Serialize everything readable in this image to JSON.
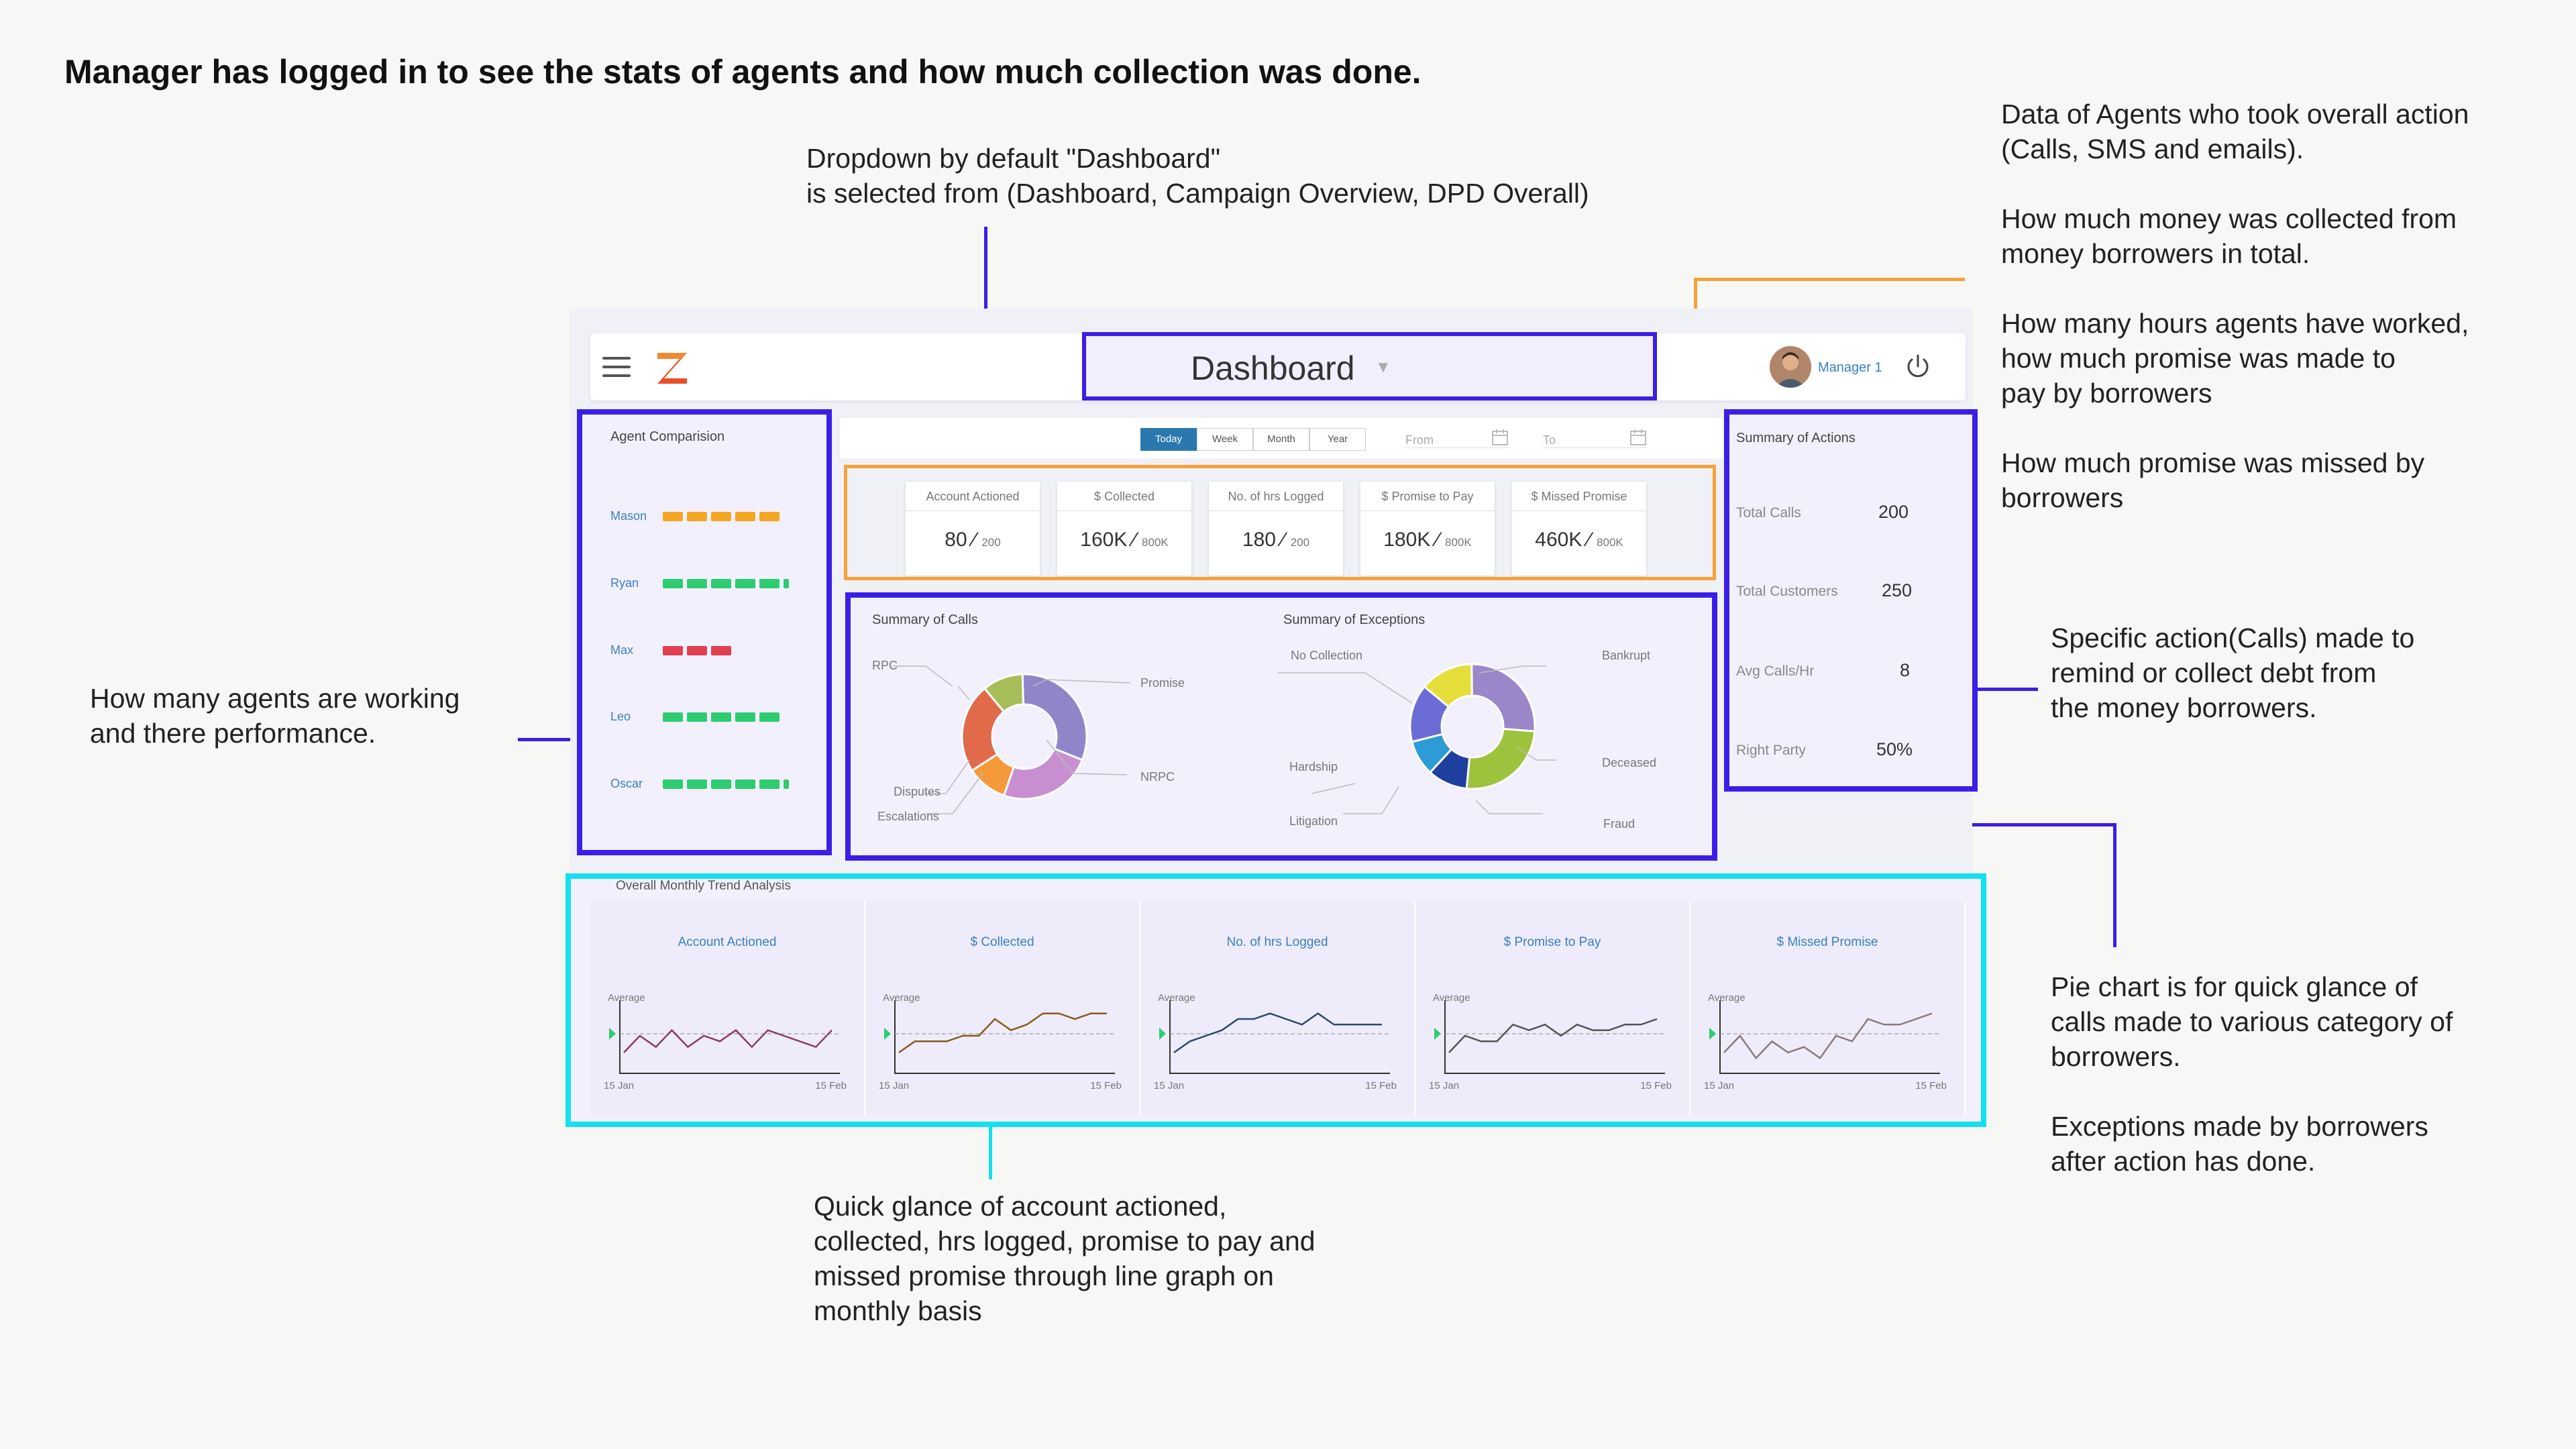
{
  "heading": "Manager has logged in to see the stats of agents and how much collection was done.",
  "notes": {
    "dropdown": "Dropdown by default \"Dashboard\"\nis selected from (Dashboard, Campaign Overview, DPD Overall)",
    "data_agents": "Data of Agents who took overall action\n(Calls, SMS and emails).\n\nHow much money was collected from\nmoney borrowers in total.\n\nHow many hours agents have worked,\nhow much promise was made to\npay by borrowers\n\nHow much promise was missed by\nborrowers",
    "agents_working": "How many agents are working\nand there performance.",
    "specific_action": "Specific action(Calls) made to\nremind or collect debt from\nthe money borrowers.",
    "pie_chart": "Pie chart is for quick glance of\ncalls made to various category of\nborrowers.\n\nExceptions made by borrowers\nafter action has done.",
    "quick_glance": "Quick glance of account actioned,\ncollected, hrs logged, promise to pay and\nmissed promise through line graph on\nmonthly basis"
  },
  "header": {
    "dropdown_label": "Dashboard",
    "user_name": "Manager 1"
  },
  "agents": {
    "title": "Agent Comparision",
    "items": [
      {
        "name": "Mason",
        "color": "#f5a623",
        "bars": 5
      },
      {
        "name": "Ryan",
        "color": "#2ecc71",
        "bars": 6
      },
      {
        "name": "Max",
        "color": "#e04050",
        "bars": 3
      },
      {
        "name": "Leo",
        "color": "#2ecc71",
        "bars": 5
      },
      {
        "name": "Oscar",
        "color": "#2ecc71",
        "bars": 6
      }
    ]
  },
  "filters": {
    "periods": [
      "Today",
      "Week",
      "Month",
      "Year"
    ],
    "active": "Today",
    "from": "From",
    "to": "To"
  },
  "stats": [
    {
      "label": "Account Actioned",
      "value": "80",
      "total": "200"
    },
    {
      "label": "$ Collected",
      "value": "160K",
      "total": "800K"
    },
    {
      "label": "No. of hrs Logged",
      "value": "180",
      "total": "200"
    },
    {
      "label": "$ Promise to Pay",
      "value": "180K",
      "total": "800K"
    },
    {
      "label": "$ Missed Promise",
      "value": "460K",
      "total": "800K"
    }
  ],
  "calls_summary": {
    "title": "Summary of Calls",
    "labels": [
      "RPC",
      "Promise",
      "NRPC",
      "Disputes",
      "Escalations"
    ],
    "colors": [
      "#a7bd59",
      "#8f86c9",
      "#c88fd0",
      "#f59a3a",
      "#e06a4a"
    ]
  },
  "exceptions_summary": {
    "title": "Summary of Exceptions",
    "labels": [
      "No Collection",
      "Bankrupt",
      "Deceased",
      "Fraud",
      "Litigation",
      "Hardship"
    ],
    "colors": [
      "#e6de3a",
      "#9a86c9",
      "#9dc23c",
      "#1f3fa0",
      "#2c9bd6",
      "#6b6cd6"
    ]
  },
  "actions": {
    "title": "Summary of Actions",
    "items": [
      {
        "label": "Total Calls",
        "value": "200"
      },
      {
        "label": "Total Customers",
        "value": "250"
      },
      {
        "label": "Avg Calls/Hr",
        "value": "8"
      },
      {
        "label": "Right Party",
        "value": "50%"
      }
    ]
  },
  "trend": {
    "title": "Overall Monthly Trend Analysis",
    "avg_label": "Average",
    "x_start": "15 Jan",
    "x_end": "15 Feb",
    "cards": [
      {
        "label": "Account Actioned",
        "color": "#8a3a6a",
        "values": [
          3,
          6,
          4,
          7,
          4,
          6,
          5,
          7,
          4,
          7,
          6,
          5,
          4,
          7
        ]
      },
      {
        "label": "$ Collected",
        "color": "#8a5a1a",
        "values": [
          3,
          5,
          5,
          5,
          6,
          6,
          9,
          7,
          8,
          10,
          10,
          9,
          10,
          10
        ]
      },
      {
        "label": "No. of hrs Logged",
        "color": "#2a4a6a",
        "values": [
          3,
          5,
          6,
          7,
          9,
          9,
          10,
          9,
          8,
          10,
          8,
          8,
          8,
          8
        ]
      },
      {
        "label": "$ Promise to Pay",
        "color": "#555555",
        "values": [
          3,
          6,
          5,
          5,
          8,
          7,
          8,
          6,
          8,
          7,
          7,
          8,
          8,
          9
        ]
      },
      {
        "label": "$ Missed Promise",
        "color": "#8a7a7a",
        "values": [
          3,
          6,
          2,
          5,
          3,
          4,
          2,
          6,
          5,
          9,
          8,
          8,
          9,
          10
        ]
      }
    ]
  }
}
